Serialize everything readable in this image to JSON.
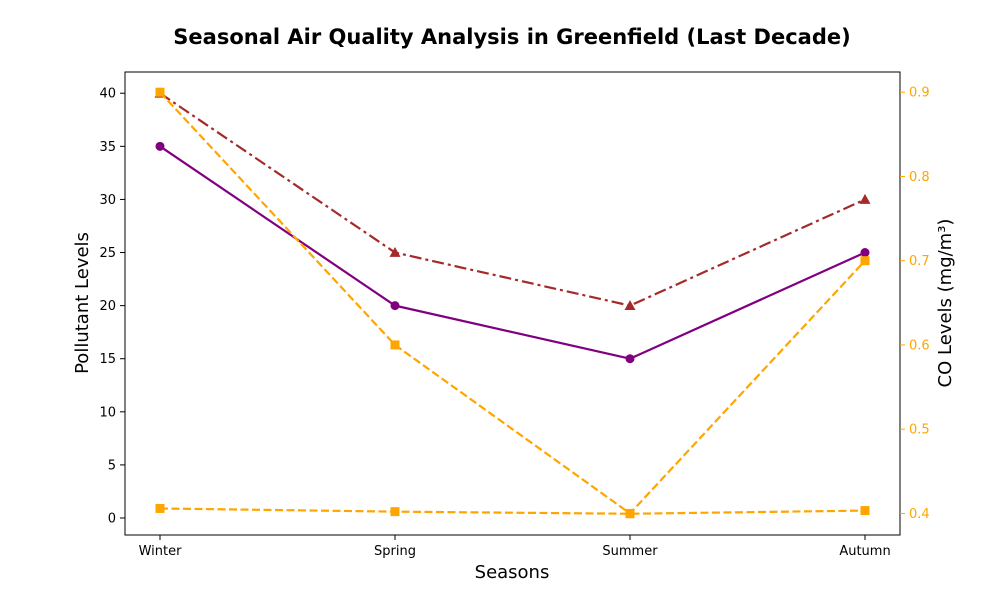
{
  "chart_data": {
    "type": "line",
    "title": "Seasonal Air Quality Analysis in Greenfield (Last Decade)",
    "xlabel": "Seasons",
    "ylabel": "Pollutant Levels",
    "y2label": "CO Levels (mg/m³)",
    "categories": [
      "Winter",
      "Spring",
      "Summer",
      "Autumn"
    ],
    "ylim": [
      -1.6,
      42
    ],
    "y2lim": [
      0.3744,
      0.924
    ],
    "yticks": [
      0,
      5,
      10,
      15,
      20,
      25,
      30,
      35,
      40
    ],
    "y2ticks": [
      0.4,
      0.5,
      0.6,
      0.7,
      0.8,
      0.9
    ],
    "grid": false,
    "series": [
      {
        "axis": "left",
        "color": "#800080",
        "style": "solid",
        "marker": "circle",
        "values": [
          35,
          20,
          15,
          25
        ]
      },
      {
        "axis": "left",
        "color": "#a52a2a",
        "style": "dashdot",
        "marker": "triangle",
        "values": [
          40,
          25,
          20,
          30
        ]
      },
      {
        "axis": "left",
        "color": "#ffa500",
        "style": "dashed",
        "marker": "square",
        "values": [
          0.9,
          0.6,
          0.4,
          0.7
        ]
      },
      {
        "axis": "right",
        "color": "#ffa500",
        "style": "dashed",
        "marker": "square",
        "values": [
          0.9,
          0.6,
          0.4,
          0.7
        ]
      }
    ]
  }
}
